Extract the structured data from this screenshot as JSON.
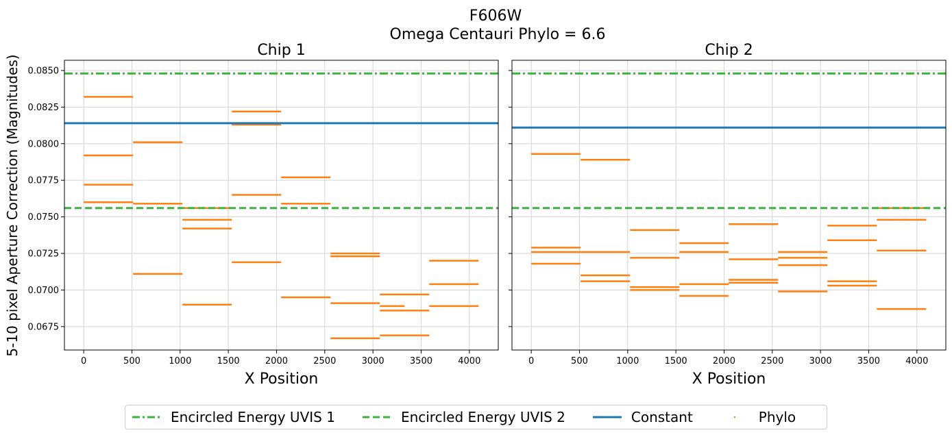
{
  "figure": {
    "title": "F606W",
    "subtitle": "Omega Centauri Phylo = 6.6",
    "ylabel": "5-10 pixel Aperture Correction (Magnitudes)"
  },
  "colors": {
    "ee": "#3cb23c",
    "constant": "#1f77b4",
    "phylo": "#ff7f0e",
    "grid": "#d3d3d3"
  },
  "legend": {
    "items": [
      {
        "label": "Encircled Energy UVIS 1",
        "style": "dashdot",
        "color": "#3cb23c"
      },
      {
        "label": "Encircled Energy UVIS 2",
        "style": "dashed",
        "color": "#3cb23c"
      },
      {
        "label": "Constant",
        "style": "solid",
        "color": "#1f77b4"
      },
      {
        "label": "Phylo",
        "style": "dot",
        "color": "#ff7f0e"
      }
    ]
  },
  "chart_data": [
    {
      "type": "line",
      "title": "Chip 1",
      "xlabel": "X Position",
      "ylabel": "5-10 pixel Aperture Correction (Magnitudes)",
      "xlim": [
        -200,
        4300
      ],
      "ylim": [
        0.0659,
        0.0857
      ],
      "xticks": [
        0,
        500,
        1000,
        1500,
        2000,
        2500,
        3000,
        3500,
        4000
      ],
      "yticks": [
        0.0675,
        0.07,
        0.0725,
        0.075,
        0.0775,
        0.08,
        0.0825,
        0.085
      ],
      "grid": true,
      "reference_lines": [
        {
          "name": "Encircled Energy UVIS 1",
          "y": 0.0848
        },
        {
          "name": "Encircled Energy UVIS 2",
          "y": 0.0756
        },
        {
          "name": "Constant",
          "y": 0.0814
        }
      ],
      "phylo_segments": [
        {
          "x": [
            0,
            512
          ],
          "y": 0.0832
        },
        {
          "x": [
            0,
            512
          ],
          "y": 0.0792
        },
        {
          "x": [
            0,
            512
          ],
          "y": 0.0772
        },
        {
          "x": [
            0,
            512
          ],
          "y": 0.076
        },
        {
          "x": [
            512,
            1024
          ],
          "y": 0.0801
        },
        {
          "x": [
            512,
            1024
          ],
          "y": 0.0759
        },
        {
          "x": [
            512,
            1024
          ],
          "y": 0.0711
        },
        {
          "x": [
            1024,
            1536
          ],
          "y": 0.0756
        },
        {
          "x": [
            1024,
            1536
          ],
          "y": 0.0748
        },
        {
          "x": [
            1024,
            1536
          ],
          "y": 0.0742
        },
        {
          "x": [
            1024,
            1536
          ],
          "y": 0.069
        },
        {
          "x": [
            1536,
            2048
          ],
          "y": 0.0822
        },
        {
          "x": [
            1536,
            2048
          ],
          "y": 0.0813
        },
        {
          "x": [
            1536,
            2048
          ],
          "y": 0.0765
        },
        {
          "x": [
            1536,
            2048
          ],
          "y": 0.0719
        },
        {
          "x": [
            2048,
            2560
          ],
          "y": 0.0777
        },
        {
          "x": [
            2048,
            2560
          ],
          "y": 0.0759
        },
        {
          "x": [
            2048,
            2560
          ],
          "y": 0.0695
        },
        {
          "x": [
            2560,
            3072
          ],
          "y": 0.0725
        },
        {
          "x": [
            2560,
            3072
          ],
          "y": 0.0723
        },
        {
          "x": [
            2560,
            3072
          ],
          "y": 0.0691
        },
        {
          "x": [
            2560,
            3072
          ],
          "y": 0.0667
        },
        {
          "x": [
            3072,
            3584
          ],
          "y": 0.0697
        },
        {
          "x": [
            3072,
            3328
          ],
          "y": 0.0689
        },
        {
          "x": [
            3072,
            3584
          ],
          "y": 0.0686
        },
        {
          "x": [
            3072,
            3584
          ],
          "y": 0.0669
        },
        {
          "x": [
            3584,
            4096
          ],
          "y": 0.072
        },
        {
          "x": [
            3584,
            4096
          ],
          "y": 0.0704
        },
        {
          "x": [
            3584,
            4096
          ],
          "y": 0.0689
        }
      ]
    },
    {
      "type": "line",
      "title": "Chip 2",
      "xlabel": "X Position",
      "xlim": [
        -200,
        4300
      ],
      "ylim": [
        0.0659,
        0.0857
      ],
      "xticks": [
        0,
        500,
        1000,
        1500,
        2000,
        2500,
        3000,
        3500,
        4000
      ],
      "grid": true,
      "reference_lines": [
        {
          "name": "Encircled Energy UVIS 1",
          "y": 0.0848
        },
        {
          "name": "Encircled Energy UVIS 2",
          "y": 0.0756
        },
        {
          "name": "Constant",
          "y": 0.0811
        }
      ],
      "phylo_segments": [
        {
          "x": [
            0,
            512
          ],
          "y": 0.0793
        },
        {
          "x": [
            0,
            512
          ],
          "y": 0.0729
        },
        {
          "x": [
            0,
            512
          ],
          "y": 0.0726
        },
        {
          "x": [
            0,
            512
          ],
          "y": 0.0718
        },
        {
          "x": [
            512,
            1024
          ],
          "y": 0.0789
        },
        {
          "x": [
            512,
            1024
          ],
          "y": 0.0726
        },
        {
          "x": [
            512,
            1024
          ],
          "y": 0.071
        },
        {
          "x": [
            512,
            1024
          ],
          "y": 0.0706
        },
        {
          "x": [
            1024,
            1536
          ],
          "y": 0.0741
        },
        {
          "x": [
            1024,
            1536
          ],
          "y": 0.0722
        },
        {
          "x": [
            1024,
            1536
          ],
          "y": 0.0702
        },
        {
          "x": [
            1024,
            1536
          ],
          "y": 0.07
        },
        {
          "x": [
            1536,
            2048
          ],
          "y": 0.0732
        },
        {
          "x": [
            1536,
            2048
          ],
          "y": 0.0726
        },
        {
          "x": [
            1536,
            2048
          ],
          "y": 0.0704
        },
        {
          "x": [
            1536,
            2048
          ],
          "y": 0.0696
        },
        {
          "x": [
            2048,
            2560
          ],
          "y": 0.0745
        },
        {
          "x": [
            2048,
            2560
          ],
          "y": 0.0721
        },
        {
          "x": [
            2048,
            2560
          ],
          "y": 0.0707
        },
        {
          "x": [
            2048,
            2560
          ],
          "y": 0.0705
        },
        {
          "x": [
            2560,
            3072
          ],
          "y": 0.0726
        },
        {
          "x": [
            2560,
            3072
          ],
          "y": 0.0722
        },
        {
          "x": [
            2560,
            3072
          ],
          "y": 0.0717
        },
        {
          "x": [
            2560,
            3072
          ],
          "y": 0.0699
        },
        {
          "x": [
            3072,
            3584
          ],
          "y": 0.0744
        },
        {
          "x": [
            3072,
            3584
          ],
          "y": 0.0734
        },
        {
          "x": [
            3072,
            3584
          ],
          "y": 0.0706
        },
        {
          "x": [
            3072,
            3584
          ],
          "y": 0.0703
        },
        {
          "x": [
            3584,
            4096
          ],
          "y": 0.0756
        },
        {
          "x": [
            3584,
            4096
          ],
          "y": 0.0748
        },
        {
          "x": [
            3584,
            4096
          ],
          "y": 0.0727
        },
        {
          "x": [
            3584,
            4096
          ],
          "y": 0.0687
        }
      ]
    }
  ]
}
